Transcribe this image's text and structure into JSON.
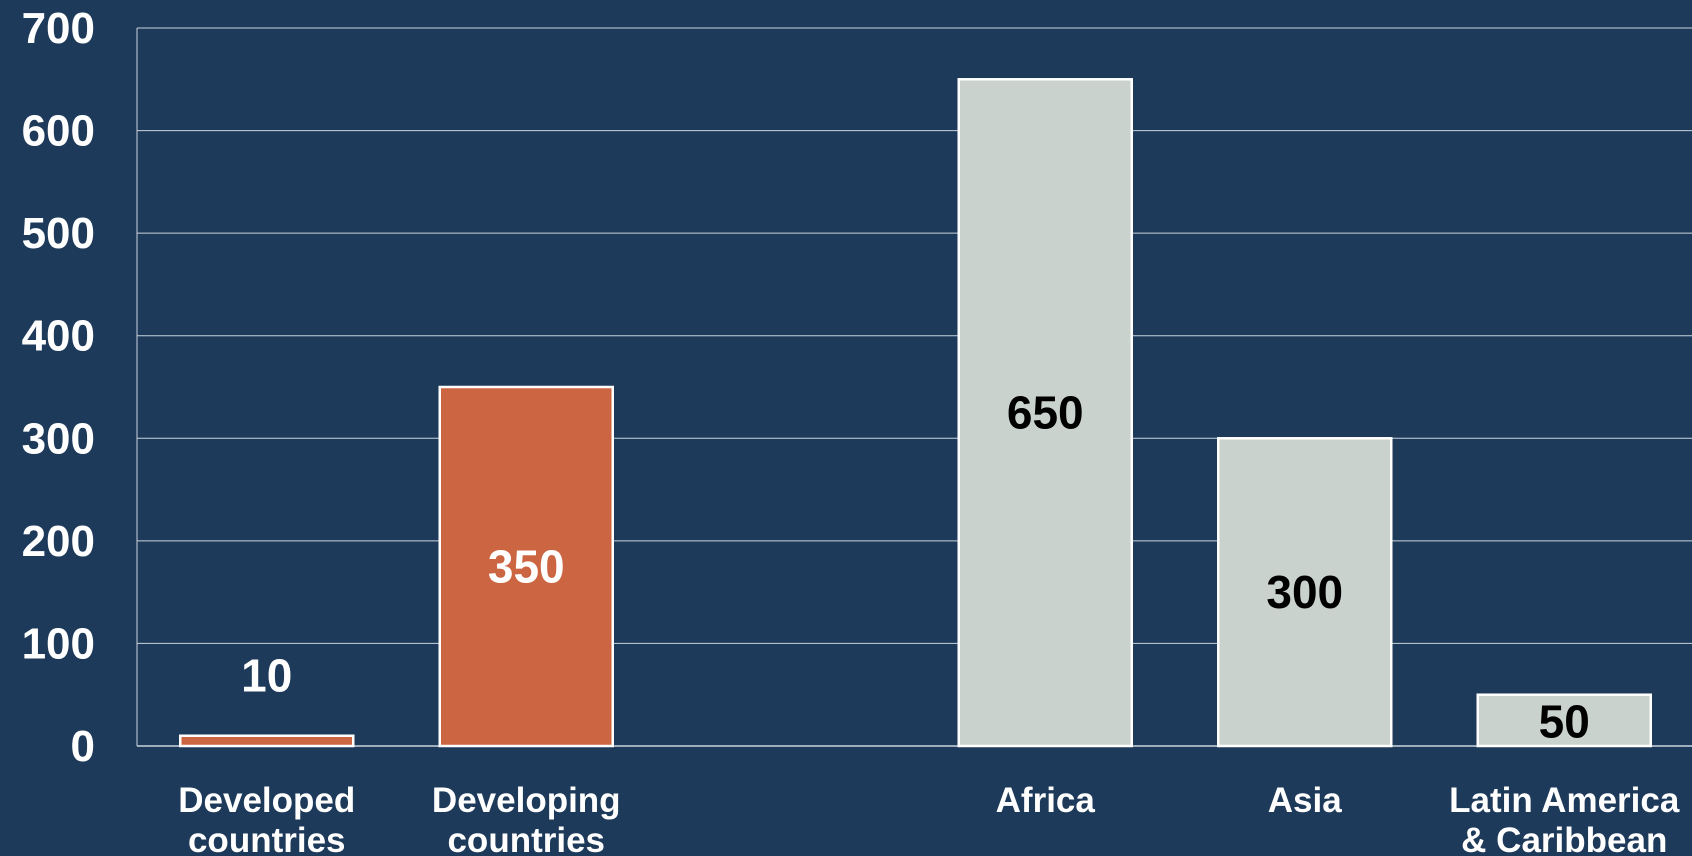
{
  "colors": {
    "background": "#1e3a5a",
    "gridline": "#c9d3dc",
    "bar_orange": "#cb6542",
    "bar_grey": "#c9d2cc",
    "bar_border": "#ffffff",
    "text_white": "#ffffff",
    "text_dark": "#000000"
  },
  "chart_data": {
    "type": "bar",
    "categories": [
      [
        "Developed",
        "countries"
      ],
      [
        "Developing",
        "countries"
      ],
      [],
      [
        "Africa"
      ],
      [
        "Asia"
      ],
      [
        "Latin America",
        "& Caribbean"
      ]
    ],
    "values": [
      10,
      350,
      null,
      650,
      300,
      50
    ],
    "value_labels": [
      "10",
      "350",
      "",
      "650",
      "300",
      "50"
    ],
    "bar_colors": [
      "#cb6542",
      "#cb6542",
      null,
      "#c9d2cc",
      "#c9d2cc",
      "#c9d2cc"
    ],
    "label_colors": [
      "#ffffff",
      "#ffffff",
      null,
      "#000000",
      "#000000",
      "#000000"
    ],
    "label_position": [
      "above",
      "inside",
      null,
      "inside",
      "inside",
      "inside"
    ],
    "title": "",
    "xlabel": "",
    "ylabel": "",
    "ylim": [
      0,
      700
    ],
    "yticks": [
      0,
      100,
      200,
      300,
      400,
      500,
      600,
      700
    ],
    "grid": true,
    "legend": "none"
  }
}
